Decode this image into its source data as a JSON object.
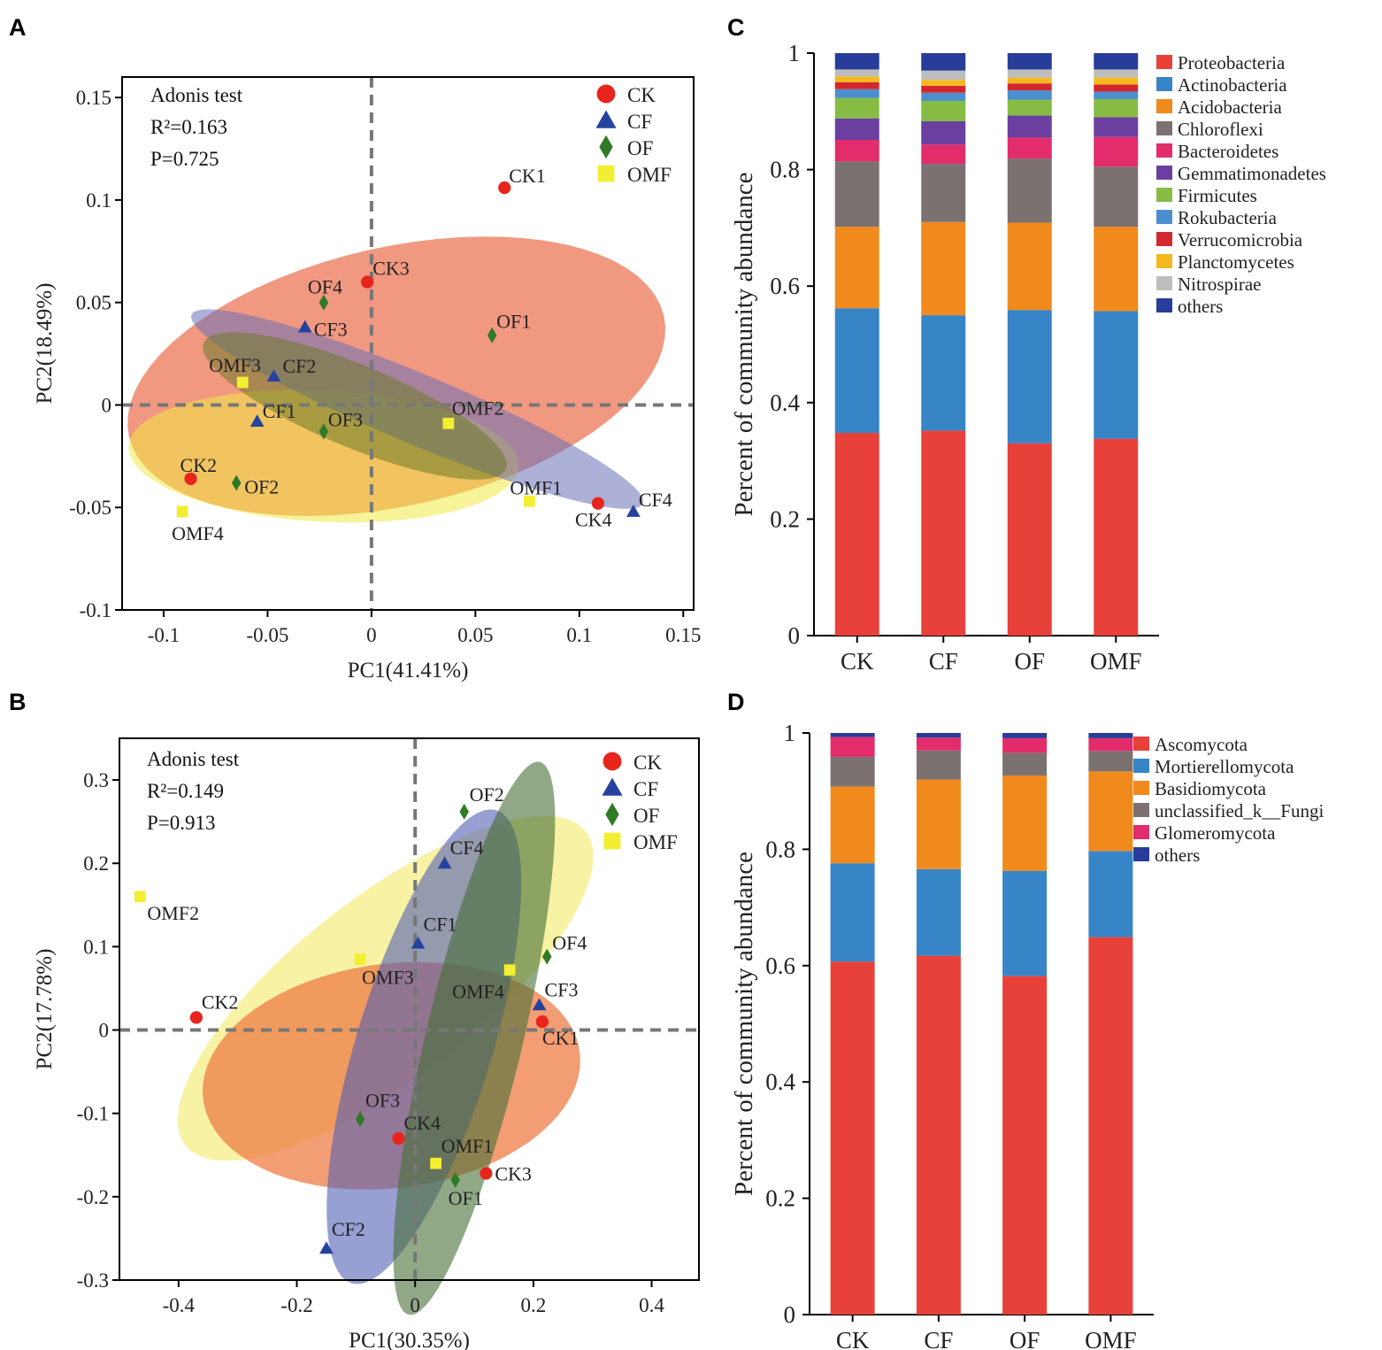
{
  "figure_labels": [
    "A",
    "B",
    "C",
    "D"
  ],
  "chart_data": [
    {
      "panel": "A",
      "type": "scatter",
      "xlabel": "PC1(41.41%)",
      "ylabel": "PC2(18.49%)",
      "xlim": [
        -0.12,
        0.155
      ],
      "ylim": [
        -0.1,
        0.16
      ],
      "xticks": [
        -0.1,
        -0.05,
        0,
        0.05,
        0.1,
        0.15
      ],
      "xtick_labels": [
        "-0.1",
        "-0.05",
        "0",
        "0.05",
        "0.1",
        "0.15"
      ],
      "yticks": [
        -0.1,
        -0.05,
        0,
        0.05,
        0.1,
        0.15
      ],
      "ytick_labels": [
        "-0.1",
        "-0.05",
        "0",
        "0.05",
        "0.1",
        "0.15"
      ],
      "annotation_lines": [
        "Adonis test",
        "R²=0.163",
        "P=0.725"
      ],
      "legend": [
        {
          "name": "CK",
          "marker": "circle",
          "color": "#e8251c"
        },
        {
          "name": "CF",
          "marker": "triangle",
          "color": "#25439e"
        },
        {
          "name": "OF",
          "marker": "diamond",
          "color": "#2f7a26"
        },
        {
          "name": "OMF",
          "marker": "square",
          "color": "#f3ee30"
        }
      ],
      "ellipses": [
        {
          "group": "CK",
          "color": "#e8542c",
          "opacity": 0.6,
          "cx": 0.012,
          "cy": 0.014,
          "rx": 0.132,
          "ry": 0.063,
          "angle": 13
        },
        {
          "group": "OMF",
          "color": "#f1ea45",
          "opacity": 0.55,
          "cx": -0.023,
          "cy": -0.025,
          "rx": 0.094,
          "ry": 0.032,
          "angle": -3
        },
        {
          "group": "CF",
          "color": "#6a71b8",
          "opacity": 0.55,
          "cx": 0.022,
          "cy": -0.002,
          "rx": 0.118,
          "ry": 0.017,
          "angle": -23
        },
        {
          "group": "OF",
          "color": "#6d7a2a",
          "opacity": 0.55,
          "cx": -0.008,
          "cy": -0.0005,
          "rx": 0.079,
          "ry": 0.02,
          "angle": -23
        }
      ],
      "points": [
        {
          "label": "CK1",
          "group": "CK",
          "x": 0.064,
          "y": 0.106
        },
        {
          "label": "CK2",
          "group": "CK",
          "x": -0.087,
          "y": -0.036
        },
        {
          "label": "CK3",
          "group": "CK",
          "x": -0.002,
          "y": 0.06
        },
        {
          "label": "CK4",
          "group": "CK",
          "x": 0.109,
          "y": -0.048
        },
        {
          "label": "CF1",
          "group": "CF",
          "x": -0.055,
          "y": -0.008
        },
        {
          "label": "CF2",
          "group": "CF",
          "x": -0.047,
          "y": 0.014
        },
        {
          "label": "CF3",
          "group": "CF",
          "x": -0.032,
          "y": 0.038
        },
        {
          "label": "CF4",
          "group": "CF",
          "x": 0.126,
          "y": -0.052
        },
        {
          "label": "OF1",
          "group": "OF",
          "x": 0.058,
          "y": 0.034
        },
        {
          "label": "OF2",
          "group": "OF",
          "x": -0.065,
          "y": -0.038
        },
        {
          "label": "OF3",
          "group": "OF",
          "x": -0.023,
          "y": -0.013
        },
        {
          "label": "OF4",
          "group": "OF",
          "x": -0.023,
          "y": 0.05
        },
        {
          "label": "OMF1",
          "group": "OMF",
          "x": 0.076,
          "y": -0.047
        },
        {
          "label": "OMF2",
          "group": "OMF",
          "x": 0.037,
          "y": -0.009
        },
        {
          "label": "OMF3",
          "group": "OMF",
          "x": -0.062,
          "y": 0.011
        },
        {
          "label": "OMF4",
          "group": "OMF",
          "x": -0.091,
          "y": -0.052
        }
      ]
    },
    {
      "panel": "B",
      "type": "scatter",
      "xlabel": "PC1(30.35%)",
      "ylabel": "PC2(17.78%)",
      "xlim": [
        -0.5,
        0.48
      ],
      "ylim": [
        -0.3,
        0.35
      ],
      "xticks": [
        -0.4,
        -0.2,
        0,
        0.2,
        0.4
      ],
      "xtick_labels": [
        "-0.4",
        "-0.2",
        "0",
        "0.2",
        "0.4"
      ],
      "yticks": [
        -0.3,
        -0.2,
        -0.1,
        0,
        0.1,
        0.2,
        0.3
      ],
      "ytick_labels": [
        "-0.3",
        "-0.2",
        "-0.1",
        "0",
        "0.1",
        "0.2",
        "0.3"
      ],
      "annotation_lines": [
        "Adonis test",
        "R²=0.149",
        "P=0.913"
      ],
      "legend": [
        {
          "name": "CK",
          "marker": "circle",
          "color": "#e8251c"
        },
        {
          "name": "CF",
          "marker": "triangle",
          "color": "#25439e"
        },
        {
          "name": "OF",
          "marker": "diamond",
          "color": "#2f7a26"
        },
        {
          "name": "OMF",
          "marker": "square",
          "color": "#f3ee30"
        }
      ],
      "ellipses": [
        {
          "group": "OMF",
          "color": "#f6ee87",
          "opacity": 0.75,
          "cx": -0.05,
          "cy": 0.05,
          "rx": 0.39,
          "ry": 0.12,
          "angle": 27
        },
        {
          "group": "CK",
          "color": "#ed7c46",
          "opacity": 0.75,
          "cx": -0.04,
          "cy": -0.055,
          "rx": 0.32,
          "ry": 0.135,
          "angle": 4
        },
        {
          "group": "CF",
          "color": "#535fb4",
          "opacity": 0.6,
          "cx": 0.015,
          "cy": -0.02,
          "rx": 0.31,
          "ry": 0.11,
          "angle": 65
        },
        {
          "group": "OF",
          "color": "#466e35",
          "opacity": 0.6,
          "cx": 0.1,
          "cy": -0.01,
          "rx": 0.35,
          "ry": 0.08,
          "angle": 71
        }
      ],
      "points": [
        {
          "label": "CK1",
          "group": "CK",
          "x": 0.215,
          "y": 0.01
        },
        {
          "label": "CK2",
          "group": "CK",
          "x": -0.37,
          "y": 0.015
        },
        {
          "label": "CK3",
          "group": "CK",
          "x": 0.12,
          "y": -0.172
        },
        {
          "label": "CK4",
          "group": "CK",
          "x": -0.028,
          "y": -0.13
        },
        {
          "label": "CF1",
          "group": "CF",
          "x": 0.005,
          "y": 0.104
        },
        {
          "label": "CF2",
          "group": "CF",
          "x": -0.15,
          "y": -0.262
        },
        {
          "label": "CF3",
          "group": "CF",
          "x": 0.21,
          "y": 0.03
        },
        {
          "label": "CF4",
          "group": "CF",
          "x": 0.05,
          "y": 0.2
        },
        {
          "label": "OF1",
          "group": "OF",
          "x": 0.068,
          "y": -0.18
        },
        {
          "label": "OF2",
          "group": "OF",
          "x": 0.083,
          "y": 0.262
        },
        {
          "label": "OF3",
          "group": "OF",
          "x": -0.093,
          "y": -0.107
        },
        {
          "label": "OF4",
          "group": "OF",
          "x": 0.223,
          "y": 0.088
        },
        {
          "label": "OMF1",
          "group": "OMF",
          "x": 0.035,
          "y": -0.16
        },
        {
          "label": "OMF2",
          "group": "OMF",
          "x": -0.465,
          "y": 0.16
        },
        {
          "label": "OMF3",
          "group": "OMF",
          "x": -0.093,
          "y": 0.085
        },
        {
          "label": "OMF4",
          "group": "OMF",
          "x": 0.16,
          "y": 0.072
        }
      ]
    },
    {
      "panel": "C",
      "type": "bar",
      "stacked": true,
      "ylabel": "Percent of community abundance",
      "xlabel": "",
      "ylim": [
        0,
        1
      ],
      "yticks": [
        0,
        0.2,
        0.4,
        0.6,
        0.8,
        1
      ],
      "ytick_labels": [
        "0",
        "0.2",
        "0.4",
        "0.6",
        "0.8",
        "1"
      ],
      "categories": [
        "CK",
        "CF",
        "OF",
        "OMF"
      ],
      "series": [
        {
          "name": "Proteobacteria",
          "color": "#e8413a",
          "values": [
            0.348,
            0.352,
            0.33,
            0.338
          ]
        },
        {
          "name": "Actinobacteria",
          "color": "#3784c6",
          "values": [
            0.214,
            0.198,
            0.229,
            0.219
          ]
        },
        {
          "name": "Acidobacteria",
          "color": "#f08a1d",
          "values": [
            0.14,
            0.16,
            0.15,
            0.145
          ]
        },
        {
          "name": "Chloroflexi",
          "color": "#7b7170",
          "values": [
            0.112,
            0.1,
            0.11,
            0.103
          ]
        },
        {
          "name": "Bacteroidetes",
          "color": "#e32c6b",
          "values": [
            0.037,
            0.033,
            0.036,
            0.051
          ]
        },
        {
          "name": "Gemmatimonadetes",
          "color": "#6b3fa0",
          "values": [
            0.037,
            0.04,
            0.038,
            0.034
          ]
        },
        {
          "name": "Firmicutes",
          "color": "#86bc43",
          "values": [
            0.035,
            0.035,
            0.027,
            0.031
          ]
        },
        {
          "name": "Rokubacteria",
          "color": "#4b8fd0",
          "values": [
            0.015,
            0.014,
            0.016,
            0.013
          ]
        },
        {
          "name": "Verrucomicrobia",
          "color": "#d3272e",
          "values": [
            0.012,
            0.012,
            0.012,
            0.012
          ]
        },
        {
          "name": "Planctomycetes",
          "color": "#f5b81f",
          "values": [
            0.01,
            0.01,
            0.01,
            0.012
          ]
        },
        {
          "name": "Nitrospirae",
          "color": "#bdbdbd",
          "values": [
            0.012,
            0.016,
            0.014,
            0.014
          ]
        },
        {
          "name": "others",
          "color": "#283d99",
          "values": [
            0.028,
            0.03,
            0.028,
            0.028
          ]
        }
      ],
      "legend_labels": [
        "Proteobacteria",
        "Actinobacteria",
        "Acidobacteria",
        "Chloroflexi",
        "Bacteroidetes",
        "Gemmatimonadetes",
        "Firmicutes",
        "Rokubacteria",
        "Verrucomicrobia",
        "Planctomycetes",
        "Nitrospirae",
        "others"
      ]
    },
    {
      "panel": "D",
      "type": "bar",
      "stacked": true,
      "ylabel": "Percent of community abundance",
      "xlabel": "",
      "ylim": [
        0,
        1
      ],
      "yticks": [
        0,
        0.2,
        0.4,
        0.6,
        0.8,
        1
      ],
      "ytick_labels": [
        "0",
        "0.2",
        "0.4",
        "0.6",
        "0.8",
        "1"
      ],
      "categories": [
        "CK",
        "CF",
        "OF",
        "OMF"
      ],
      "series": [
        {
          "name": "Ascomycota",
          "color": "#e8413a",
          "values": [
            0.607,
            0.617,
            0.582,
            0.649
          ]
        },
        {
          "name": "Mortierellomycota",
          "color": "#3784c6",
          "values": [
            0.169,
            0.149,
            0.181,
            0.148
          ]
        },
        {
          "name": "Basidiomycota",
          "color": "#f08a1d",
          "values": [
            0.132,
            0.154,
            0.164,
            0.137
          ]
        },
        {
          "name": "unclassified_k__Fungi",
          "color": "#7b7170",
          "values": [
            0.051,
            0.05,
            0.039,
            0.035
          ]
        },
        {
          "name": "Glomeromycota",
          "color": "#e32c6b",
          "values": [
            0.034,
            0.022,
            0.025,
            0.022
          ]
        },
        {
          "name": "others",
          "color": "#283d99",
          "values": [
            0.007,
            0.008,
            0.009,
            0.009
          ]
        }
      ],
      "legend_labels": [
        "Ascomycota",
        "Mortierellomycota",
        "Basidiomycota",
        "unclassified_k__Fungi",
        "Glomeromycota",
        "others"
      ]
    }
  ]
}
